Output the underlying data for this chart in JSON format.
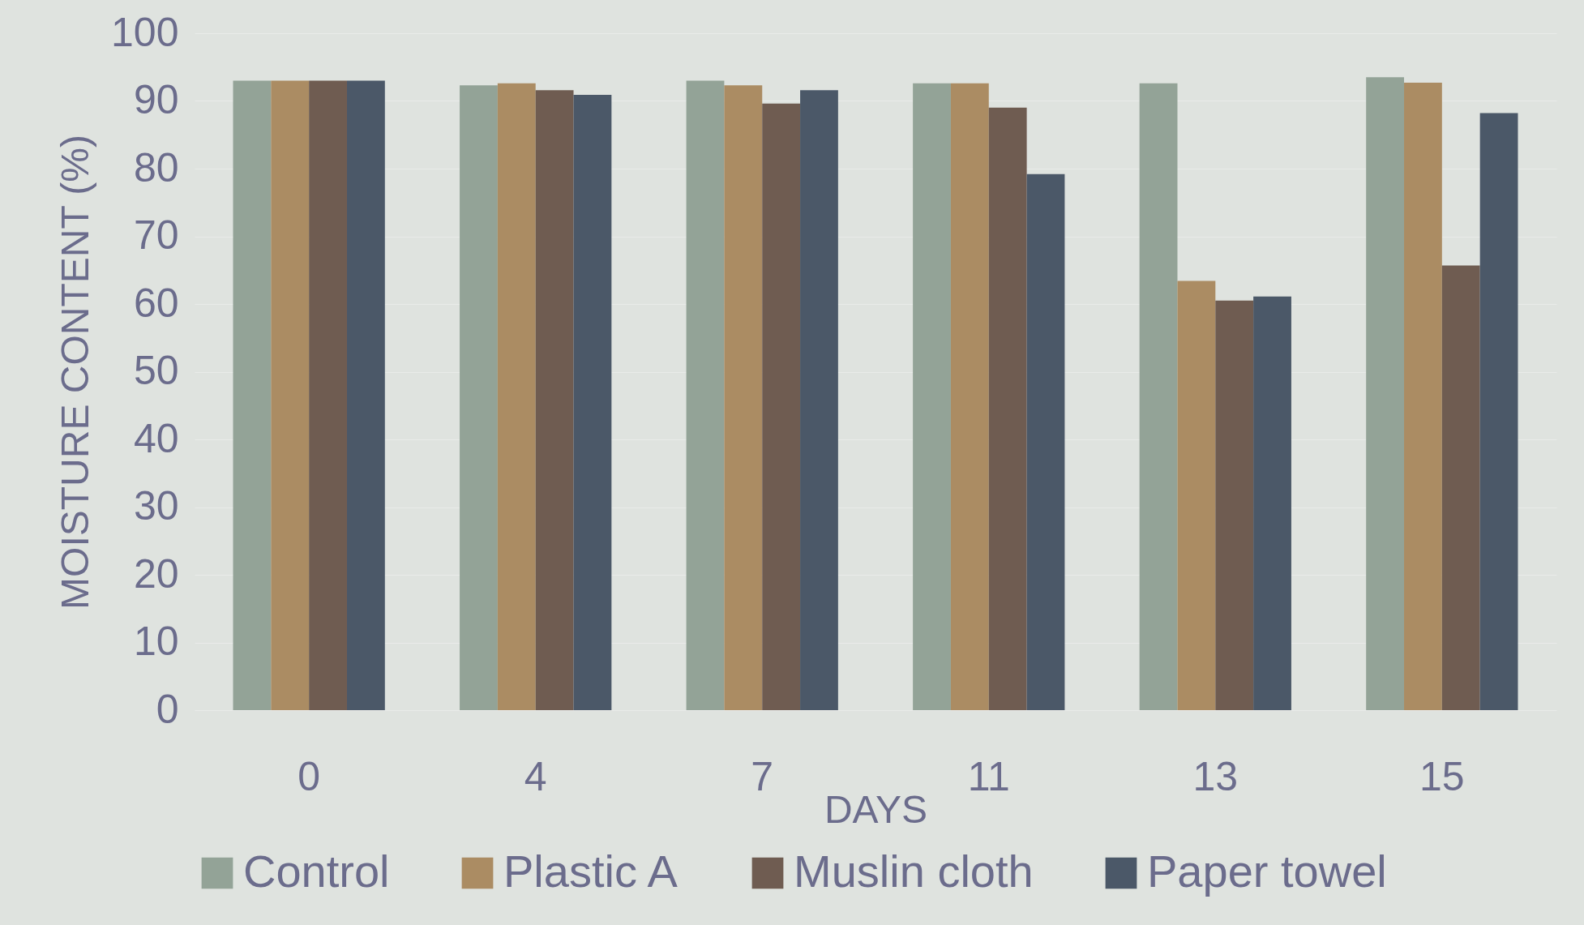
{
  "chart_data": {
    "type": "bar",
    "xlabel": "DAYS",
    "ylabel": "MOISTURE CONTENT (%)",
    "categories": [
      "0",
      "4",
      "7",
      "11",
      "13",
      "15"
    ],
    "series": [
      {
        "name": "Control",
        "color": "#93a397",
        "values": [
          93,
          92.3,
          93,
          92.6,
          92.6,
          93.5
        ]
      },
      {
        "name": "Plastic A",
        "color": "#ab8c63",
        "values": [
          93,
          92.6,
          92.3,
          92.6,
          63.4,
          92.7
        ]
      },
      {
        "name": "Muslin cloth",
        "color": "#6f5c51",
        "values": [
          93,
          91.6,
          89.6,
          89,
          60.5,
          65.7
        ]
      },
      {
        "name": "Paper towel",
        "color": "#4b5868",
        "values": [
          93,
          90.9,
          91.6,
          79.2,
          61.1,
          88.2
        ]
      }
    ],
    "ylim": [
      0,
      100
    ],
    "yticks": [
      0,
      10,
      20,
      30,
      40,
      50,
      60,
      70,
      80,
      90,
      100
    ],
    "grid": "y",
    "legend": "bottom"
  }
}
